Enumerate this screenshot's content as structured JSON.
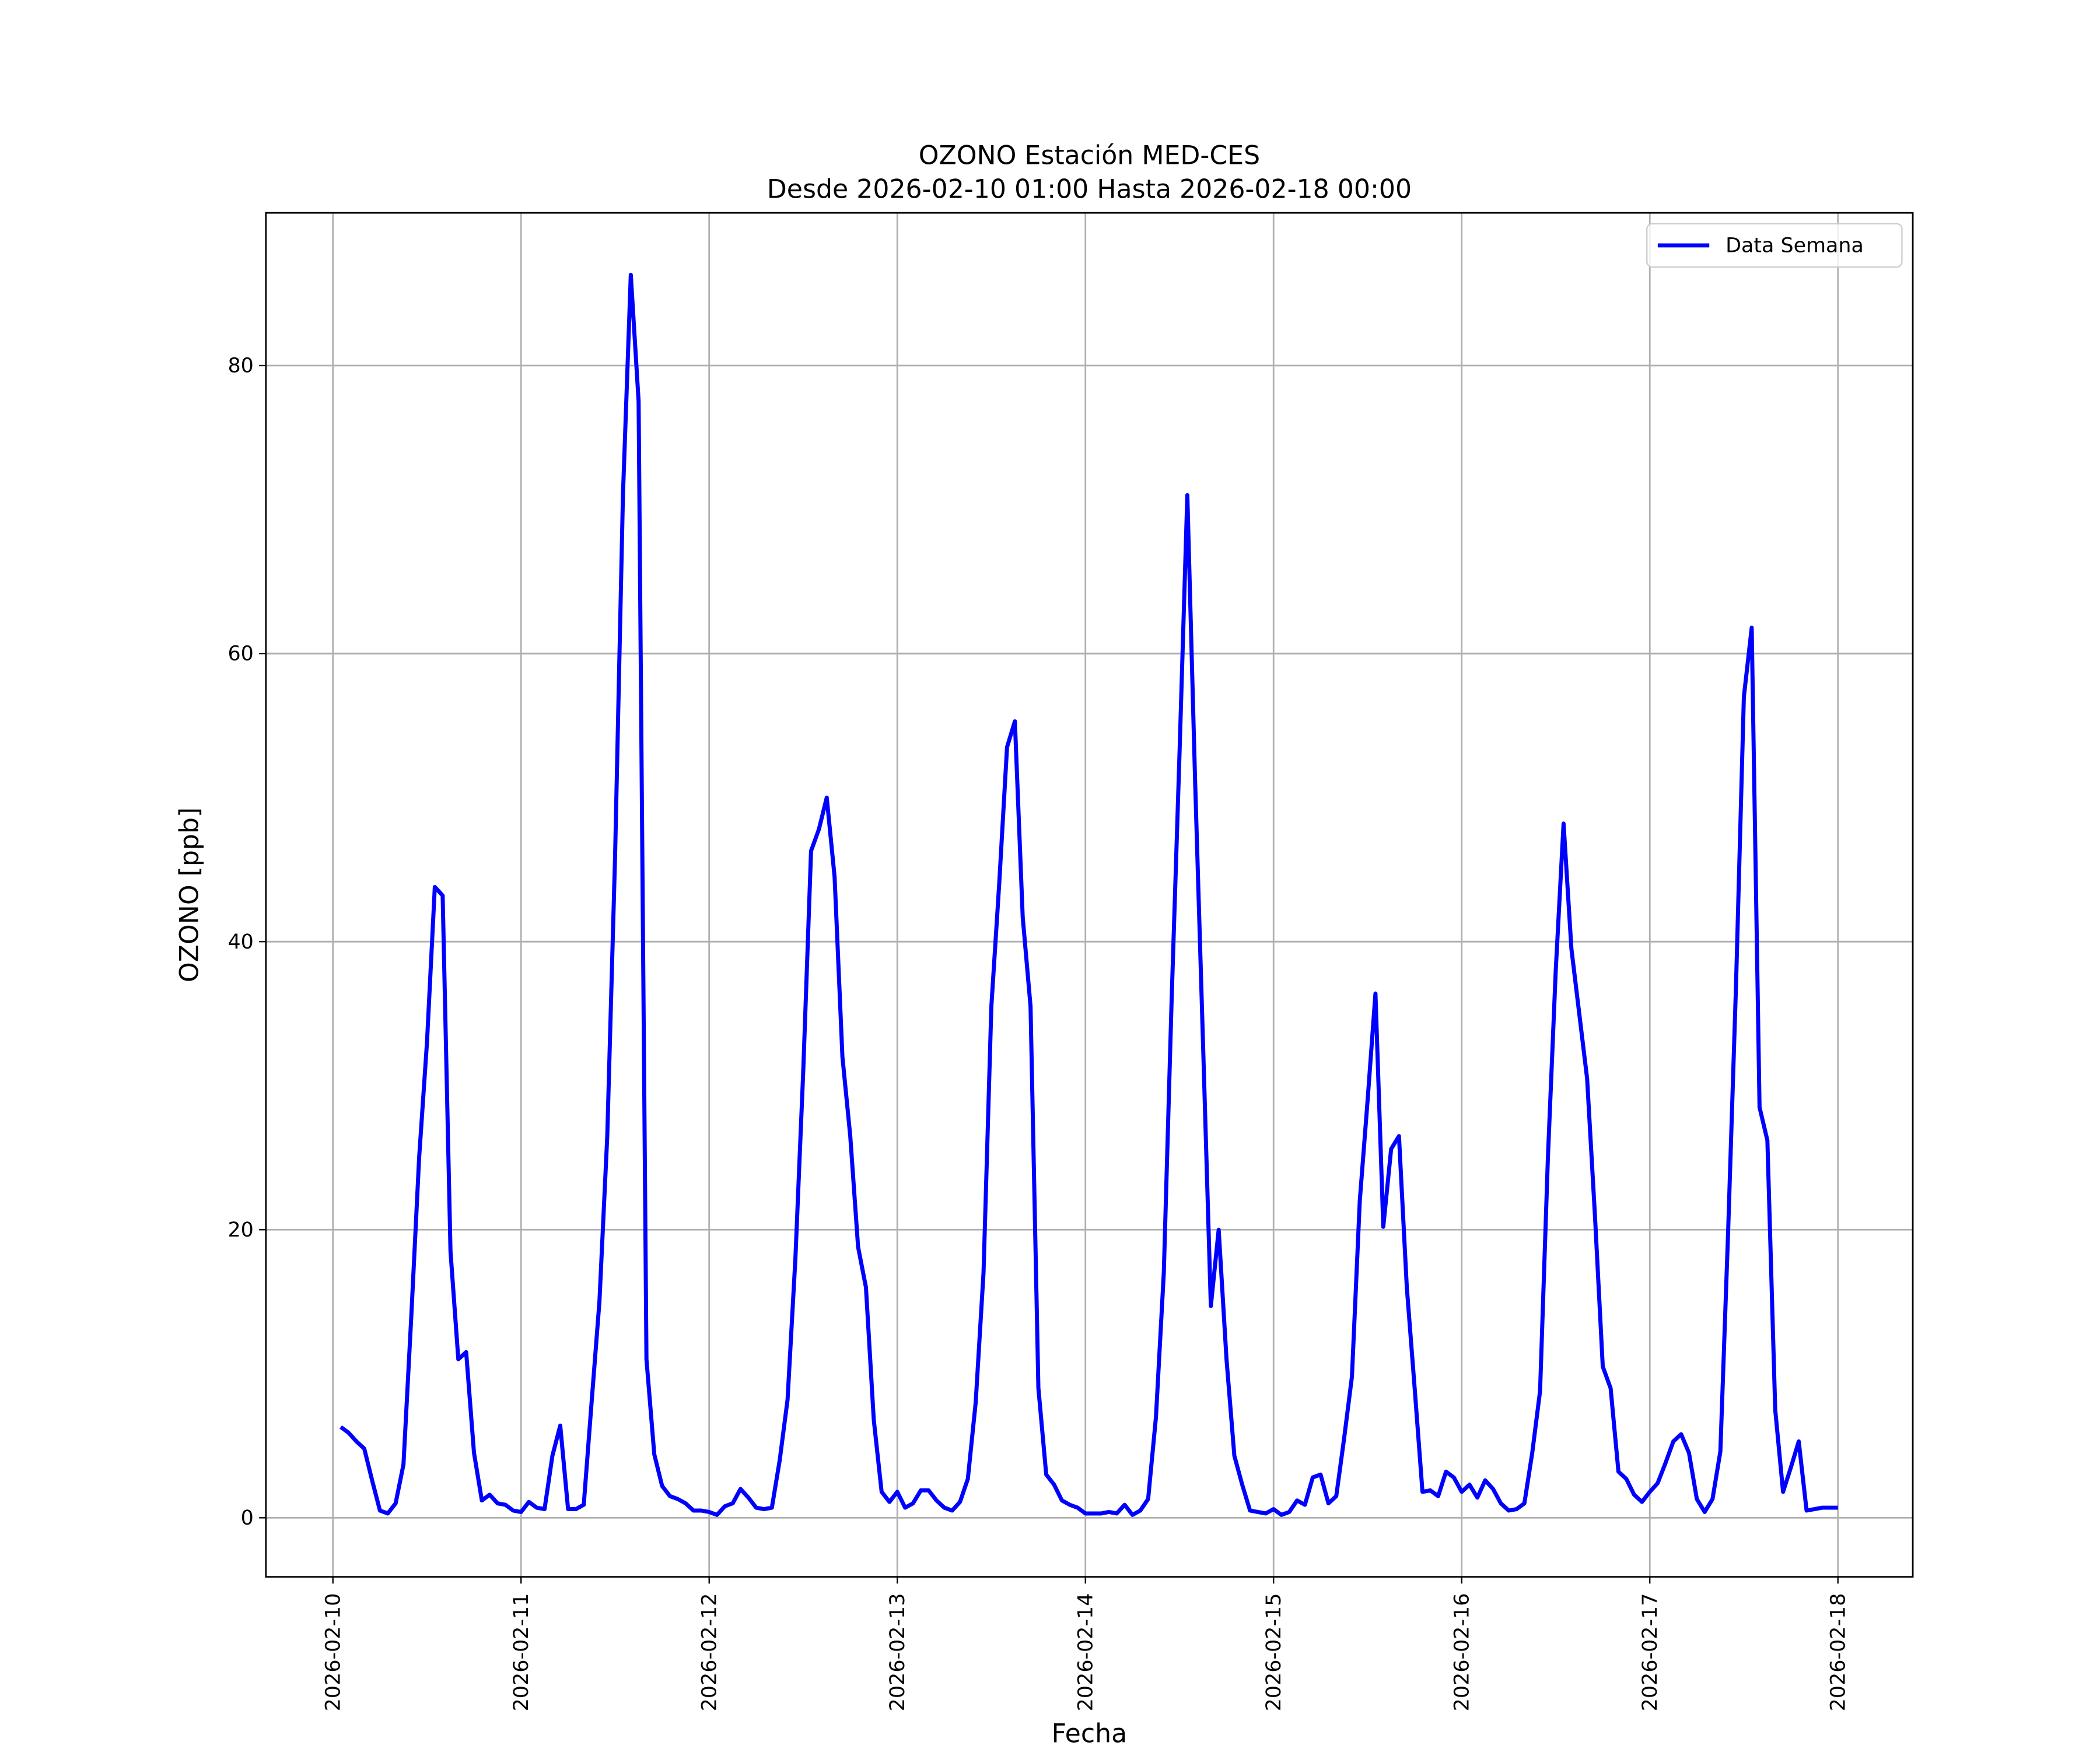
{
  "chart_data": {
    "type": "line",
    "title": "OZONO Estación MED-CES",
    "subtitle": "Desde 2026-02-10 01:00 Hasta 2026-02-18 00:00",
    "xlabel": "Fecha",
    "ylabel": "OZONO [ppb]",
    "x": [
      "2026-02-10 01:00",
      "2026-02-10 02:00",
      "2026-02-10 03:00",
      "2026-02-10 04:00",
      "2026-02-10 05:00",
      "2026-02-10 06:00",
      "2026-02-10 07:00",
      "2026-02-10 08:00",
      "2026-02-10 09:00",
      "2026-02-10 10:00",
      "2026-02-10 11:00",
      "2026-02-10 12:00",
      "2026-02-10 13:00",
      "2026-02-10 14:00",
      "2026-02-10 15:00",
      "2026-02-10 16:00",
      "2026-02-10 17:00",
      "2026-02-10 18:00",
      "2026-02-10 19:00",
      "2026-02-10 20:00",
      "2026-02-10 21:00",
      "2026-02-10 22:00",
      "2026-02-10 23:00",
      "2026-02-11 00:00",
      "2026-02-11 01:00",
      "2026-02-11 02:00",
      "2026-02-11 03:00",
      "2026-02-11 04:00",
      "2026-02-11 05:00",
      "2026-02-11 06:00",
      "2026-02-11 07:00",
      "2026-02-11 08:00",
      "2026-02-11 09:00",
      "2026-02-11 10:00",
      "2026-02-11 11:00",
      "2026-02-11 12:00",
      "2026-02-11 13:00",
      "2026-02-11 14:00",
      "2026-02-11 15:00",
      "2026-02-11 16:00",
      "2026-02-11 17:00",
      "2026-02-11 18:00",
      "2026-02-11 19:00",
      "2026-02-11 20:00",
      "2026-02-11 21:00",
      "2026-02-11 22:00",
      "2026-02-11 23:00",
      "2026-02-12 00:00",
      "2026-02-12 01:00",
      "2026-02-12 02:00",
      "2026-02-12 03:00",
      "2026-02-12 04:00",
      "2026-02-12 05:00",
      "2026-02-12 06:00",
      "2026-02-12 07:00",
      "2026-02-12 08:00",
      "2026-02-12 09:00",
      "2026-02-12 10:00",
      "2026-02-12 11:00",
      "2026-02-12 12:00",
      "2026-02-12 13:00",
      "2026-02-12 14:00",
      "2026-02-12 15:00",
      "2026-02-12 16:00",
      "2026-02-12 17:00",
      "2026-02-12 18:00",
      "2026-02-12 19:00",
      "2026-02-12 20:00",
      "2026-02-12 21:00",
      "2026-02-12 22:00",
      "2026-02-12 23:00",
      "2026-02-13 00:00",
      "2026-02-13 01:00",
      "2026-02-13 02:00",
      "2026-02-13 03:00",
      "2026-02-13 04:00",
      "2026-02-13 05:00",
      "2026-02-13 06:00",
      "2026-02-13 07:00",
      "2026-02-13 08:00",
      "2026-02-13 09:00",
      "2026-02-13 10:00",
      "2026-02-13 11:00",
      "2026-02-13 12:00",
      "2026-02-13 13:00",
      "2026-02-13 14:00",
      "2026-02-13 15:00",
      "2026-02-13 16:00",
      "2026-02-13 17:00",
      "2026-02-13 18:00",
      "2026-02-13 19:00",
      "2026-02-13 20:00",
      "2026-02-13 21:00",
      "2026-02-13 22:00",
      "2026-02-13 23:00",
      "2026-02-14 00:00",
      "2026-02-14 01:00",
      "2026-02-14 02:00",
      "2026-02-14 03:00",
      "2026-02-14 04:00",
      "2026-02-14 05:00",
      "2026-02-14 06:00",
      "2026-02-14 07:00",
      "2026-02-14 08:00",
      "2026-02-14 09:00",
      "2026-02-14 10:00",
      "2026-02-14 11:00",
      "2026-02-14 12:00",
      "2026-02-14 13:00",
      "2026-02-14 14:00",
      "2026-02-14 15:00",
      "2026-02-14 16:00",
      "2026-02-14 17:00",
      "2026-02-14 18:00",
      "2026-02-14 19:00",
      "2026-02-14 20:00",
      "2026-02-14 21:00",
      "2026-02-14 22:00",
      "2026-02-14 23:00",
      "2026-02-15 00:00",
      "2026-02-15 01:00",
      "2026-02-15 02:00",
      "2026-02-15 03:00",
      "2026-02-15 04:00",
      "2026-02-15 05:00",
      "2026-02-15 06:00",
      "2026-02-15 07:00",
      "2026-02-15 08:00",
      "2026-02-15 09:00",
      "2026-02-15 10:00",
      "2026-02-15 11:00",
      "2026-02-15 12:00",
      "2026-02-15 13:00",
      "2026-02-15 14:00",
      "2026-02-15 15:00",
      "2026-02-15 16:00",
      "2026-02-15 17:00",
      "2026-02-15 18:00",
      "2026-02-15 19:00",
      "2026-02-15 20:00",
      "2026-02-15 21:00",
      "2026-02-15 22:00",
      "2026-02-15 23:00",
      "2026-02-16 00:00",
      "2026-02-16 01:00",
      "2026-02-16 02:00",
      "2026-02-16 03:00",
      "2026-02-16 04:00",
      "2026-02-16 05:00",
      "2026-02-16 06:00",
      "2026-02-16 07:00",
      "2026-02-16 08:00",
      "2026-02-16 09:00",
      "2026-02-16 10:00",
      "2026-02-16 11:00",
      "2026-02-16 12:00",
      "2026-02-16 13:00",
      "2026-02-16 14:00",
      "2026-02-16 15:00",
      "2026-02-16 16:00",
      "2026-02-16 17:00",
      "2026-02-16 18:00",
      "2026-02-16 19:00",
      "2026-02-16 20:00",
      "2026-02-16 21:00",
      "2026-02-16 22:00",
      "2026-02-16 23:00",
      "2026-02-17 00:00",
      "2026-02-17 01:00",
      "2026-02-17 02:00",
      "2026-02-17 03:00",
      "2026-02-17 04:00",
      "2026-02-17 05:00",
      "2026-02-17 06:00",
      "2026-02-17 07:00",
      "2026-02-17 08:00",
      "2026-02-17 09:00",
      "2026-02-17 10:00",
      "2026-02-17 11:00",
      "2026-02-17 12:00",
      "2026-02-17 13:00",
      "2026-02-17 14:00",
      "2026-02-17 15:00",
      "2026-02-17 16:00",
      "2026-02-17 17:00",
      "2026-02-17 18:00",
      "2026-02-17 19:00",
      "2026-02-17 20:00",
      "2026-02-17 21:00",
      "2026-02-17 22:00",
      "2026-02-17 23:00",
      "2026-02-18 00:00"
    ],
    "series": [
      {
        "name": "Data Semana",
        "color": "#0000ff",
        "values": [
          6.3,
          5.9,
          5.3,
          4.8,
          2.6,
          0.5,
          0.3,
          1.0,
          3.7,
          14,
          25,
          33,
          43.8,
          43.2,
          18.5,
          11,
          11.5,
          4.5,
          1.2,
          1.6,
          1.0,
          0.9,
          0.5,
          0.4,
          1.1,
          0.7,
          0.6,
          4.3,
          6.4,
          0.6,
          0.6,
          0.9,
          8,
          15,
          26.5,
          46,
          71,
          86.3,
          77.5,
          11,
          4.4,
          2.2,
          1.5,
          1.3,
          1.0,
          0.5,
          0.5,
          0.4,
          0.2,
          0.8,
          1.0,
          2.0,
          1.4,
          0.7,
          0.6,
          0.7,
          4,
          8.2,
          18,
          31,
          46.3,
          47.8,
          50,
          44.5,
          32,
          26.5,
          18.8,
          16,
          6.8,
          1.8,
          1.1,
          1.8,
          0.7,
          1.0,
          1.9,
          1.9,
          1.2,
          0.7,
          0.5,
          1.1,
          2.7,
          8,
          17,
          35.5,
          44,
          53.5,
          55.3,
          41.7,
          35.5,
          9,
          3,
          2.3,
          1.2,
          0.9,
          0.7,
          0.3,
          0.3,
          0.3,
          0.4,
          0.3,
          0.9,
          0.2,
          0.5,
          1.3,
          7,
          17,
          36,
          53,
          71,
          51,
          33,
          14.7,
          20,
          11,
          4.3,
          2.3,
          0.5,
          0.4,
          0.3,
          0.6,
          0.2,
          0.4,
          1.2,
          0.9,
          2.8,
          3.0,
          1.0,
          1.5,
          5.5,
          9.8,
          22,
          29,
          36.4,
          20.2,
          25.6,
          26.5,
          16,
          9,
          1.8,
          1.9,
          1.5,
          3.2,
          2.8,
          1.8,
          2.3,
          1.4,
          2.6,
          2.0,
          1.0,
          0.5,
          0.6,
          1.0,
          4.5,
          8.8,
          25,
          38,
          48.2,
          39.5,
          35,
          30.5,
          21,
          10.5,
          9,
          3.2,
          2.7,
          1.6,
          1.1,
          1.8,
          2.4,
          3.8,
          5.3,
          5.8,
          4.5,
          1.3,
          0.4,
          1.3,
          4.6,
          20,
          37,
          57,
          61.8,
          28.5,
          26.2,
          7.5,
          1.8,
          3.5,
          5.3,
          0.5,
          0.6,
          0.7,
          0.7,
          0.7
        ]
      }
    ],
    "xlim": [
      "2026-02-09 15:27",
      "2026-02-18 09:33"
    ],
    "xticks": [
      "2026-02-10",
      "2026-02-11",
      "2026-02-12",
      "2026-02-13",
      "2026-02-14",
      "2026-02-15",
      "2026-02-16",
      "2026-02-17",
      "2026-02-18"
    ],
    "ylim": [
      -4.1,
      90.6
    ],
    "yticks": [
      0,
      20,
      40,
      60,
      80
    ],
    "grid": true,
    "legend": "upper right"
  }
}
